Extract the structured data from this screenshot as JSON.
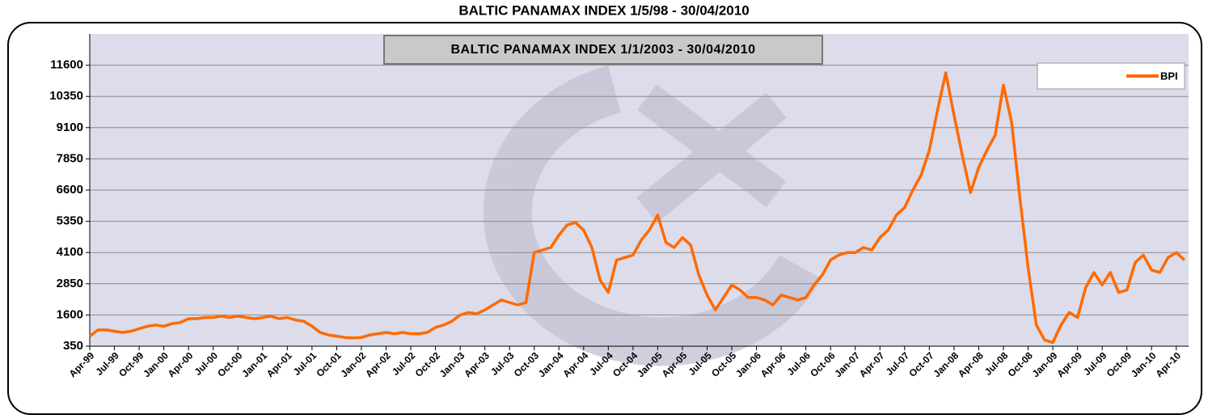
{
  "chart_data": {
    "type": "line",
    "title": "BALTIC PANAMAX INDEX 1/5/98 - 30/04/2010",
    "subtitle": "BALTIC PANAMAX INDEX 1/1/2003 - 30/04/2010",
    "categories": [
      "Apr-99",
      null,
      null,
      "Jul-99",
      null,
      null,
      "Oct-99",
      null,
      null,
      "Jan-00",
      null,
      null,
      "Apr-00",
      null,
      null,
      "Jul-00",
      null,
      null,
      "Oct-00",
      null,
      null,
      "Jan-01",
      null,
      null,
      "Apr-01",
      null,
      null,
      "Jul-01",
      null,
      null,
      "Oct-01",
      null,
      null,
      "Jan-02",
      null,
      null,
      "Apr-02",
      null,
      null,
      "Jul-02",
      null,
      null,
      "Oct-02",
      null,
      null,
      "Jan-03",
      null,
      null,
      "Apr-03",
      null,
      null,
      "Jul-03",
      null,
      null,
      "Oct-03",
      null,
      null,
      "Jan-04",
      null,
      null,
      "Apr-04",
      null,
      null,
      "Jul-04",
      null,
      null,
      "Oct-04",
      null,
      null,
      "Jan-05",
      null,
      null,
      "Apr-05",
      null,
      null,
      "Jul-05",
      null,
      null,
      "Oct-05",
      null,
      null,
      "Jan-06",
      null,
      null,
      "Apr-06",
      null,
      null,
      "Jul-06",
      null,
      null,
      "Oct-06",
      null,
      null,
      "Jan-07",
      null,
      null,
      "Apr-07",
      null,
      null,
      "Jul-07",
      null,
      null,
      "Oct-07",
      null,
      null,
      "Jan-08",
      null,
      null,
      "Apr-08",
      null,
      null,
      "Jul-08",
      null,
      null,
      "Oct-08",
      null,
      null,
      "Jan-09",
      null,
      null,
      "Apr-09",
      null,
      null,
      "Jul-09",
      null,
      null,
      "Oct-09",
      null,
      null,
      "Jan-10",
      null,
      null,
      "Apr-10",
      null
    ],
    "series": [
      {
        "name": "BPI",
        "color": "#ff6a00",
        "values": [
          750,
          1000,
          1000,
          950,
          900,
          950,
          1050,
          1150,
          1200,
          1150,
          1250,
          1300,
          1450,
          1450,
          1500,
          1500,
          1550,
          1500,
          1550,
          1500,
          1450,
          1500,
          1550,
          1450,
          1500,
          1400,
          1350,
          1150,
          900,
          800,
          750,
          700,
          680,
          700,
          800,
          850,
          900,
          850,
          900,
          850,
          850,
          900,
          1100,
          1200,
          1350,
          1600,
          1700,
          1650,
          1800,
          2000,
          2200,
          2100,
          2000,
          2100,
          4100,
          4200,
          4300,
          4800,
          5200,
          5300,
          5000,
          4300,
          3000,
          2500,
          3800,
          3900,
          4000,
          4600,
          5000,
          5600,
          4500,
          4300,
          4700,
          4400,
          3200,
          2400,
          1800,
          2300,
          2800,
          2600,
          2300,
          2300,
          2200,
          2000,
          2400,
          2300,
          2200,
          2300,
          2800,
          3200,
          3800,
          4000,
          4100,
          4100,
          4300,
          4200,
          4700,
          5000,
          5600,
          5900,
          6600,
          7200,
          8200,
          9800,
          11300,
          9600,
          8000,
          6500,
          7500,
          8200,
          8800,
          10800,
          9300,
          6300,
          3500,
          1200,
          600,
          500,
          1200,
          1700,
          1500,
          2700,
          3300,
          2800,
          3300,
          2500,
          2600,
          3700,
          4000,
          3400,
          3300,
          3900,
          4100,
          3800
        ]
      }
    ],
    "ylim": [
      350,
      12850
    ],
    "yticks": [
      350,
      1600,
      2850,
      4100,
      5350,
      6600,
      7850,
      9100,
      10350,
      11600
    ],
    "grid": true,
    "legend": "upper right"
  }
}
